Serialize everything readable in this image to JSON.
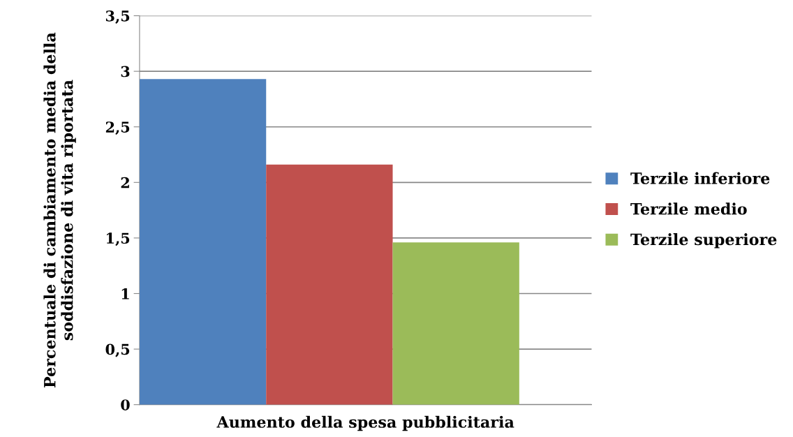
{
  "chart_data": {
    "type": "bar",
    "xlabel": "Aumento della spesa pubblicitaria",
    "ylabel": "Percentuale di cambiamento media della\nsoddisfazione di vita riportata",
    "categories": [
      null
    ],
    "series": [
      {
        "name": "Terzile inferiore",
        "color": "#4f81bd",
        "values": [
          2.93
        ]
      },
      {
        "name": "Terzile medio",
        "color": "#c0504d",
        "values": [
          2.16
        ]
      },
      {
        "name": "Terzile superiore",
        "color": "#9bbb59",
        "values": [
          1.46
        ]
      }
    ],
    "ylim": [
      0,
      3.5
    ],
    "yticks": [
      0,
      {
        "value": 0.5,
        "label": "0,5"
      },
      1,
      {
        "value": 1.5,
        "label": "1,5"
      },
      2,
      {
        "value": 2.5,
        "label": "2,5"
      },
      3,
      {
        "value": 3.5,
        "label": "3,5"
      }
    ],
    "grid": "y",
    "legend": "right"
  }
}
